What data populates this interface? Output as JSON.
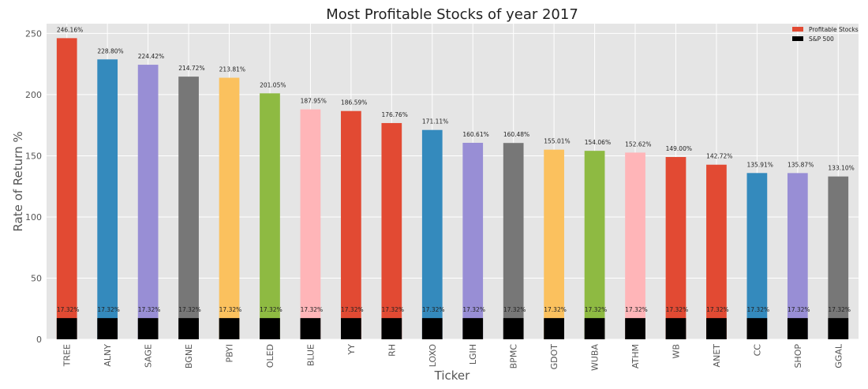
{
  "chart_data": {
    "type": "bar",
    "title": "Most Profitable Stocks of year 2017",
    "xlabel": "Ticker",
    "ylabel": "Rate of Return %",
    "ylim": [
      0,
      258
    ],
    "yticks": [
      0,
      50,
      100,
      150,
      200,
      250
    ],
    "grid": true,
    "legend_position": "top-right",
    "categories": [
      "TREE",
      "ALNY",
      "SAGE",
      "BGNE",
      "PBYI",
      "OLED",
      "BLUE",
      "YY",
      "RH",
      "LOXO",
      "LGIH",
      "BPMC",
      "GDOT",
      "WUBA",
      "ATHM",
      "WB",
      "ANET",
      "CC",
      "SHOP",
      "GGAL"
    ],
    "series": [
      {
        "name": "Profitable Stocks",
        "legend_color": "#e24a33",
        "colors": [
          "#e24a33",
          "#348abd",
          "#988ed5",
          "#777777",
          "#fbc15e",
          "#8eba42",
          "#ffb5b8",
          "#e24a33",
          "#e24a33",
          "#348abd",
          "#988ed5",
          "#777777",
          "#fbc15e",
          "#8eba42",
          "#ffb5b8",
          "#e24a33",
          "#e24a33",
          "#348abd",
          "#988ed5",
          "#777777"
        ],
        "values": [
          246.16,
          228.8,
          224.42,
          214.72,
          213.81,
          201.05,
          187.95,
          186.59,
          176.76,
          171.11,
          160.61,
          160.48,
          155.01,
          154.06,
          152.62,
          149.0,
          142.72,
          135.91,
          135.87,
          133.1
        ],
        "labels": [
          "246.16%",
          "228.80%",
          "224.42%",
          "214.72%",
          "213.81%",
          "201.05%",
          "187.95%",
          "186.59%",
          "176.76%",
          "171.11%",
          "160.61%",
          "160.48%",
          "155.01%",
          "154.06%",
          "152.62%",
          "149.00%",
          "142.72%",
          "135.91%",
          "135.87%",
          "133.10%"
        ]
      },
      {
        "name": "S&P 500",
        "legend_color": "#000000",
        "color": "#000000",
        "values": [
          17.32,
          17.32,
          17.32,
          17.32,
          17.32,
          17.32,
          17.32,
          17.32,
          17.32,
          17.32,
          17.32,
          17.32,
          17.32,
          17.32,
          17.32,
          17.32,
          17.32,
          17.32,
          17.32,
          17.32
        ],
        "labels": [
          "17.32%",
          "17.32%",
          "17.32%",
          "17.32%",
          "17.32%",
          "17.32%",
          "17.32%",
          "17.32%",
          "17.32%",
          "17.32%",
          "17.32%",
          "17.32%",
          "17.32%",
          "17.32%",
          "17.32%",
          "17.32%",
          "17.32%",
          "17.32%",
          "17.32%",
          "17.32%"
        ]
      }
    ],
    "colors": {
      "plot_background": "#e5e5e5",
      "grid": "#ffffff"
    }
  }
}
